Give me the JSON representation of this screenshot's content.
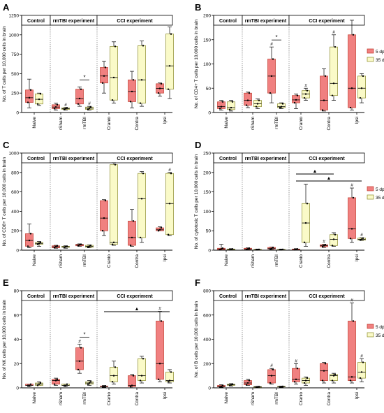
{
  "colors": {
    "dpi5_fill": "#f08080",
    "dpi5_stroke": "#c0392b",
    "dpi35_fill": "#fafac8",
    "dpi35_stroke": "#8a8a2a",
    "axis": "#000000",
    "point": "#000000"
  },
  "groups": [
    "Control",
    "rmTBI experiment",
    "CCI experiment"
  ],
  "categories": [
    "Naive",
    "rSham",
    "rmTBI",
    "Cranio",
    "Contra",
    "Ipsi"
  ],
  "legend": [
    "5 dpi",
    "35 dpi"
  ],
  "chart_data": [
    {
      "type": "box",
      "letter": "A",
      "ylabel": "No. of T cells per 10,000 cells in brain",
      "ylim": [
        0,
        1250
      ],
      "yticks": [
        "0",
        "250",
        "500",
        "750",
        "1000",
        "1250"
      ],
      "series": [
        {
          "name": "5 dpi",
          "boxes": [
            [
              60,
              130,
              190,
              290,
              430
            ],
            [
              30,
              50,
              70,
              100,
              120
            ],
            [
              80,
              110,
              180,
              300,
              330
            ],
            [
              250,
              380,
              470,
              580,
              660
            ],
            [
              60,
              140,
              270,
              420,
              530
            ],
            [
              210,
              250,
              310,
              370,
              380
            ]
          ]
        },
        {
          "name": "35 dpi",
          "boxes": [
            [
              90,
              110,
              170,
              240,
              250
            ],
            [
              30,
              40,
              50,
              60,
              65
            ],
            [
              30,
              40,
              55,
              70,
              80
            ],
            [
              120,
              160,
              450,
              850,
              910
            ],
            [
              80,
              120,
              420,
              860,
              920
            ],
            [
              180,
              300,
              600,
              1010,
              1100
            ]
          ]
        }
      ],
      "annotations": {
        "hash": [
          "rSham-35",
          "rmTBI-35"
        ],
        "star": [
          "rmTBI"
        ],
        "bars": [],
        "triangles": []
      },
      "legend_visible": false
    },
    {
      "type": "box",
      "letter": "B",
      "ylabel": "No. of CD4+ T cells per 10,000 cells in brain",
      "ylim": [
        0,
        200
      ],
      "yticks": [
        "0",
        "50",
        "100",
        "150",
        "200"
      ],
      "series": [
        {
          "name": "5 dpi",
          "boxes": [
            [
              5,
              8,
              12,
              22,
              25
            ],
            [
              10,
              15,
              25,
              40,
              42
            ],
            [
              20,
              40,
              75,
              110,
              135
            ],
            [
              8,
              20,
              26,
              35,
              38
            ],
            [
              3,
              5,
              25,
              75,
              90
            ],
            [
              5,
              10,
              50,
              160,
              190
            ]
          ]
        },
        {
          "name": "35 dpi",
          "boxes": [
            [
              3,
              6,
              10,
              22,
              25
            ],
            [
              8,
              12,
              18,
              25,
              28
            ],
            [
              8,
              10,
              12,
              18,
              20
            ],
            [
              25,
              30,
              38,
              45,
              50
            ],
            [
              25,
              35,
              60,
              135,
              160
            ],
            [
              20,
              30,
              50,
              75,
              80
            ]
          ]
        }
      ],
      "annotations": {
        "hash": [
          "rmTBI-5",
          "Cranio-35",
          "Contra-35"
        ],
        "star": [
          "rmTBI"
        ],
        "bars": [],
        "triangles": []
      },
      "legend_visible": true
    },
    {
      "type": "box",
      "letter": "C",
      "ylabel": "No. of CD8+ T cells per 10,000 cells in brain",
      "ylim": [
        0,
        1000
      ],
      "yticks": [
        "0",
        "200",
        "400",
        "600",
        "800",
        "1000"
      ],
      "series": [
        {
          "name": "5 dpi",
          "boxes": [
            [
              25,
              40,
              100,
              170,
              270
            ],
            [
              20,
              25,
              35,
              45,
              50
            ],
            [
              40,
              45,
              55,
              60,
              65
            ],
            [
              150,
              200,
              330,
              510,
              520
            ],
            [
              40,
              50,
              130,
              300,
              420
            ],
            [
              200,
              200,
              210,
              230,
              240
            ]
          ]
        },
        {
          "name": "35 dpi",
          "boxes": [
            [
              40,
              60,
              70,
              80,
              90
            ],
            [
              20,
              30,
              35,
              40,
              45
            ],
            [
              25,
              30,
              40,
              50,
              55
            ],
            [
              50,
              60,
              80,
              880,
              900
            ],
            [
              80,
              130,
              530,
              790,
              810
            ],
            [
              150,
              160,
              480,
              790,
              800
            ]
          ]
        }
      ],
      "annotations": {
        "hash": [
          "Ipsi-35"
        ],
        "star": [],
        "bars": [],
        "triangles": []
      },
      "legend_visible": false
    },
    {
      "type": "box",
      "letter": "D",
      "ylabel": "No. of cytotoxic T cells per 10,000 cells in brain",
      "ylim": [
        0,
        250
      ],
      "yticks": [
        "0",
        "50",
        "100",
        "150",
        "200",
        "250"
      ],
      "series": [
        {
          "name": "5 dpi",
          "boxes": [
            [
              0,
              1,
              3,
              5,
              15
            ],
            [
              1,
              2,
              3,
              5,
              6
            ],
            [
              1,
              3,
              4,
              7,
              8
            ],
            [
              0,
              1,
              2,
              3,
              4
            ],
            [
              7,
              9,
              12,
              14,
              15
            ],
            [
              20,
              30,
              55,
              135,
              160
            ]
          ]
        },
        {
          "name": "35 dpi",
          "boxes": [
            [
              0,
              1,
              2,
              3,
              4
            ],
            [
              0,
              1,
              1,
              2,
              3
            ],
            [
              0,
              1,
              1,
              2,
              3
            ],
            [
              10,
              20,
              70,
              120,
              170
            ],
            [
              10,
              12,
              28,
              40,
              45
            ],
            [
              25,
              26,
              28,
              31,
              32
            ]
          ]
        }
      ],
      "annotations": {
        "hash": [
          "Contra-5",
          "Ipsi-5",
          "Ipsi-35"
        ],
        "star": [],
        "bars": [
          [
            "Cranio",
            "Contra"
          ],
          [
            "Cranio",
            "Ipsi"
          ]
        ],
        "triangles": [
          "▲",
          "▲"
        ]
      },
      "legend_visible": true
    },
    {
      "type": "box",
      "letter": "E",
      "ylabel": "No. of NK cells per 10,000 cells in brain",
      "ylim": [
        0,
        80
      ],
      "yticks": [
        "0",
        "20",
        "40",
        "60",
        "80"
      ],
      "series": [
        {
          "name": "5 dpi",
          "boxes": [
            [
              1,
              2,
              2,
              3,
              3
            ],
            [
              2,
              3,
              6,
              7,
              8
            ],
            [
              12,
              15,
              22,
              33,
              36
            ],
            [
              0.5,
              1,
              1,
              1.5,
              2
            ],
            [
              0,
              1,
              2,
              10,
              11
            ],
            [
              5,
              7,
              20,
              55,
              63
            ]
          ]
        },
        {
          "name": "35 dpi",
          "boxes": [
            [
              2,
              2,
              3,
              4,
              5
            ],
            [
              1,
              2,
              2,
              3,
              3
            ],
            [
              2,
              3,
              4,
              5,
              6
            ],
            [
              3,
              5,
              10,
              17,
              22
            ],
            [
              4,
              6,
              10,
              24,
              26
            ],
            [
              4,
              5,
              6,
              13,
              15
            ]
          ]
        }
      ],
      "annotations": {
        "hash": [
          "rmTBI-5",
          "Ipsi-5"
        ],
        "star": [
          "rmTBI"
        ],
        "bars": [
          [
            "Cranio",
            "Ipsi"
          ]
        ],
        "triangles": [
          "▲"
        ]
      },
      "legend_visible": false
    },
    {
      "type": "box",
      "letter": "F",
      "ylabel": "No. of B cells per 10,000 cells in brain",
      "ylim": [
        0,
        800
      ],
      "yticks": [
        "0",
        "200",
        "400",
        "600",
        "800"
      ],
      "series": [
        {
          "name": "5 dpi",
          "boxes": [
            [
              5,
              8,
              12,
              20,
              25
            ],
            [
              20,
              25,
              40,
              60,
              70
            ],
            [
              30,
              40,
              100,
              150,
              160
            ],
            [
              30,
              50,
              70,
              160,
              200
            ],
            [
              40,
              60,
              140,
              200,
              210
            ],
            [
              40,
              60,
              90,
              550,
              700
            ]
          ]
        },
        {
          "name": "35 dpi",
          "boxes": [
            [
              15,
              20,
              25,
              30,
              35
            ],
            [
              5,
              6,
              8,
              10,
              12
            ],
            [
              5,
              8,
              10,
              12,
              14
            ],
            [
              20,
              40,
              60,
              80,
              90
            ],
            [
              40,
              60,
              100,
              110,
              120
            ],
            [
              50,
              80,
              130,
              210,
              240
            ]
          ]
        }
      ],
      "annotations": {
        "hash": [
          "rmTBI-5",
          "Cranio-5",
          "Ipsi-5",
          "Ipsi-35"
        ],
        "star": [],
        "bars": [],
        "triangles": []
      },
      "legend_visible": true
    }
  ]
}
